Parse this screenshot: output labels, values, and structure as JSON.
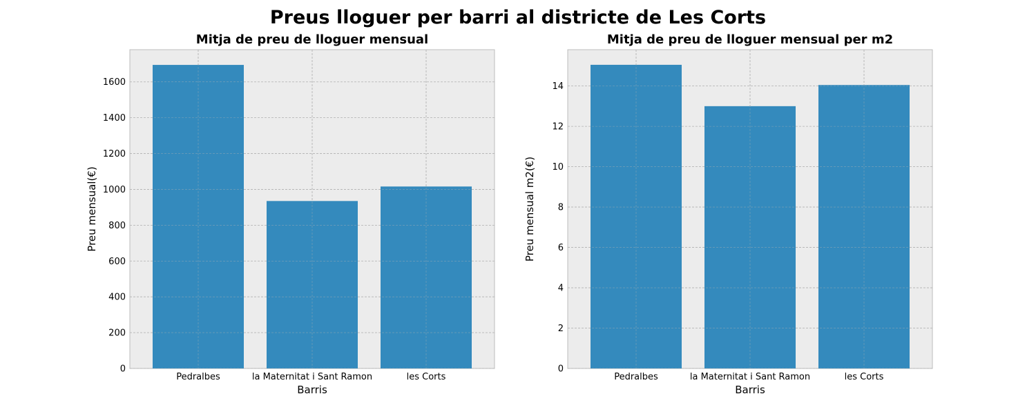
{
  "figure": {
    "suptitle": "Preus lloguer per barri al districte de Les Corts"
  },
  "chart_data": [
    {
      "type": "bar",
      "title": "Mitja de preu de lloguer mensual",
      "xlabel": "Barris",
      "ylabel": "Preu mensual(€)",
      "categories": [
        "Pedralbes",
        "la Maternitat i Sant Ramon",
        "les Corts"
      ],
      "values": [
        1695,
        935,
        1016
      ],
      "ylim": [
        0,
        1780
      ],
      "yticks": [
        0,
        200,
        400,
        600,
        800,
        1000,
        1200,
        1400,
        1600
      ],
      "grid": true,
      "bar_color": "#348abd",
      "background": "#ececec"
    },
    {
      "type": "bar",
      "title": "Mitja de preu de lloguer mensual per m2",
      "xlabel": "Barris",
      "ylabel": "Preu mensual m2(€)",
      "categories": [
        "Pedralbes",
        "la Maternitat i Sant Ramon",
        "les Corts"
      ],
      "values": [
        15.05,
        13.0,
        14.05
      ],
      "ylim": [
        0,
        15.8
      ],
      "yticks": [
        0,
        2,
        4,
        6,
        8,
        10,
        12,
        14
      ],
      "grid": true,
      "bar_color": "#348abd",
      "background": "#ececec"
    }
  ]
}
